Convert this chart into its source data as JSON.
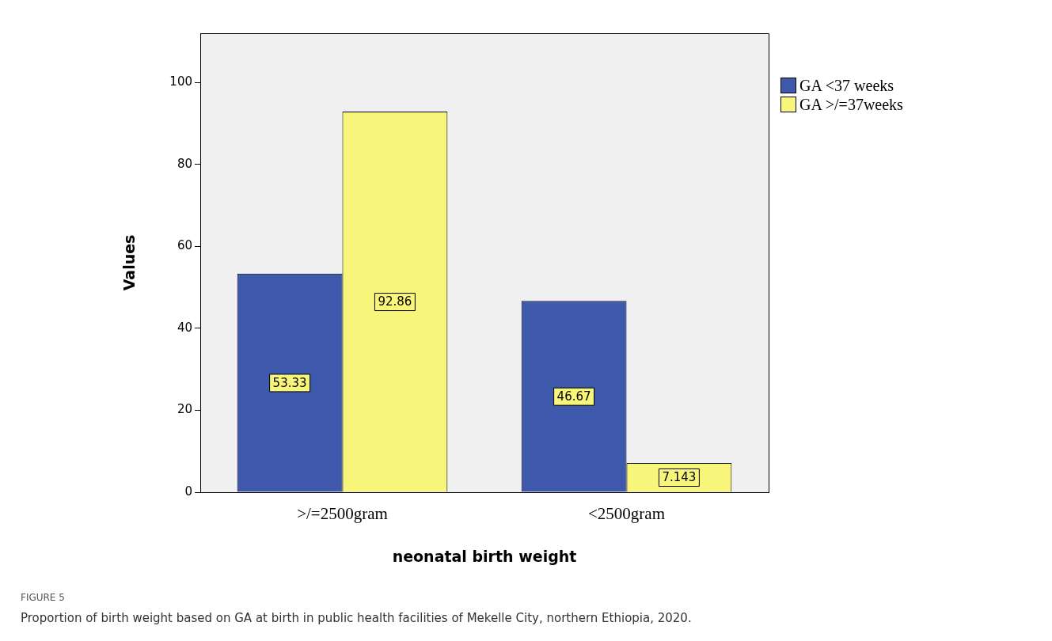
{
  "chart_data": {
    "type": "bar",
    "xlabel": "neonatal birth weight",
    "ylabel": "Values",
    "categories": [
      ">/=2500gram",
      "<2500gram"
    ],
    "series": [
      {
        "name": "GA <37 weeks",
        "color": "#3e58ac",
        "values": [
          53.33,
          46.67
        ]
      },
      {
        "name": "GA >/=37weeks",
        "color": "#f8f67a",
        "values": [
          92.86,
          7.143
        ]
      }
    ],
    "ylim": [
      0,
      112
    ],
    "yticks": [
      0,
      20,
      40,
      60,
      80,
      100
    ],
    "grid": false,
    "legend": "right",
    "data_labels": true,
    "annotations": [
      "FIGURE 5",
      "Proportion of birth weight based on GA at birth in public health facilities of Mekelle City, northern Ethiopia, 2020."
    ]
  }
}
